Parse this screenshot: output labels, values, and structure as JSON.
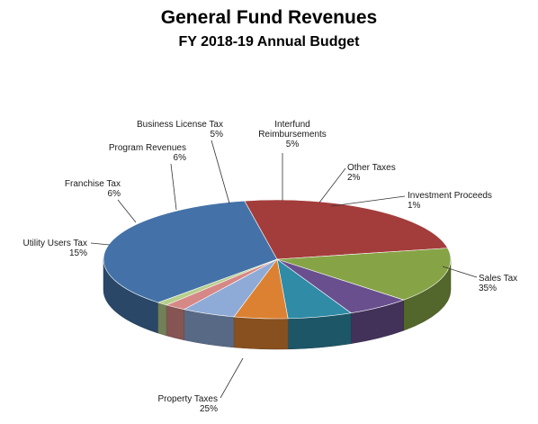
{
  "chart_data": {
    "type": "pie",
    "title": "General Fund Revenues",
    "subtitle": "FY 2018-19 Annual Budget",
    "slices": [
      {
        "label": "Sales Tax",
        "value": 35,
        "display": "35%",
        "color": "#4472a8"
      },
      {
        "label": "Property Taxes",
        "value": 25,
        "display": "25%",
        "color": "#a33d3b"
      },
      {
        "label": "Utility Users Tax",
        "value": 15,
        "display": "15%",
        "color": "#86a446"
      },
      {
        "label": "Franchise Tax",
        "value": 6,
        "display": "6%",
        "color": "#6a4f8f"
      },
      {
        "label": "Program Revenues",
        "value": 6,
        "display": "6%",
        "color": "#2f8ba6"
      },
      {
        "label": "Business License Tax",
        "value": 5,
        "display": "5%",
        "color": "#dc8132"
      },
      {
        "label": "Interfund Reimbursements",
        "value": 5,
        "display": "5%",
        "color": "#8eaad6"
      },
      {
        "label": "Other Taxes",
        "value": 2,
        "display": "2%",
        "color": "#d68886"
      },
      {
        "label": "Investment Proceeds",
        "value": 1,
        "display": "1%",
        "color": "#b7cf8c"
      }
    ],
    "legend": "none",
    "three_d": true
  }
}
